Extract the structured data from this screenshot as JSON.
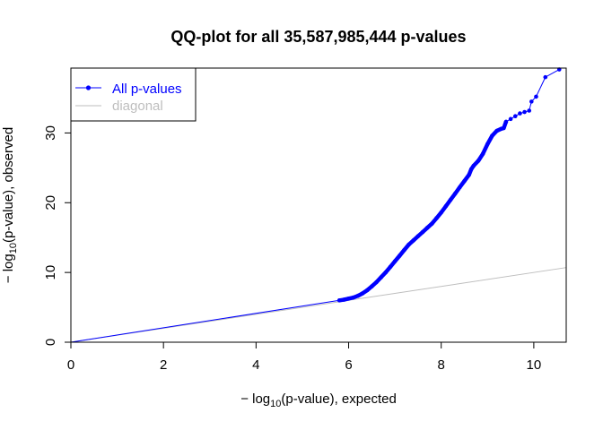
{
  "chart_data": {
    "type": "scatter",
    "title": "QQ-plot for all 35,587,985,444 p-values",
    "xlabel": {
      "prefix": "− log",
      "sub": "10",
      "suffix": "(p-value), expected"
    },
    "ylabel": {
      "prefix": "− log",
      "sub": "10",
      "suffix": "(p-value), observed"
    },
    "xlim": [
      0,
      10.7
    ],
    "ylim": [
      0,
      39.3
    ],
    "xticks": [
      "0",
      "2",
      "4",
      "6",
      "8",
      "10"
    ],
    "yticks": [
      "0",
      "10",
      "20",
      "30"
    ],
    "legend": {
      "position": "top-left",
      "entries": [
        {
          "label": "All p-values",
          "color": "#0000ff"
        },
        {
          "label": "diagonal",
          "color": "#bebebe"
        }
      ]
    },
    "series": [
      {
        "name": "All p-values",
        "color": "#0000ff",
        "points": [
          [
            0.0,
            0.0
          ],
          [
            5.8,
            6.0
          ],
          [
            5.9,
            6.1
          ],
          [
            6.0,
            6.25
          ],
          [
            6.1,
            6.4
          ],
          [
            6.2,
            6.65
          ],
          [
            6.3,
            7.0
          ],
          [
            6.4,
            7.45
          ],
          [
            6.5,
            8.0
          ],
          [
            6.6,
            8.6
          ],
          [
            6.7,
            9.3
          ],
          [
            6.8,
            10.0
          ],
          [
            6.9,
            10.8
          ],
          [
            7.0,
            11.6
          ],
          [
            7.1,
            12.4
          ],
          [
            7.2,
            13.2
          ],
          [
            7.3,
            14.0
          ],
          [
            7.4,
            14.6
          ],
          [
            7.5,
            15.2
          ],
          [
            7.6,
            15.8
          ],
          [
            7.7,
            16.4
          ],
          [
            7.8,
            17.0
          ],
          [
            7.9,
            17.8
          ],
          [
            8.0,
            18.6
          ],
          [
            8.1,
            19.5
          ],
          [
            8.2,
            20.4
          ],
          [
            8.3,
            21.3
          ],
          [
            8.4,
            22.2
          ],
          [
            8.5,
            23.1
          ],
          [
            8.6,
            24.0
          ],
          [
            8.65,
            24.8
          ],
          [
            8.7,
            25.3
          ],
          [
            8.8,
            26.0
          ],
          [
            8.9,
            27.0
          ],
          [
            9.0,
            28.4
          ],
          [
            9.1,
            29.6
          ],
          [
            9.2,
            30.3
          ],
          [
            9.3,
            30.6
          ],
          [
            9.35,
            30.7
          ],
          [
            9.4,
            31.6
          ],
          [
            9.5,
            32.0
          ],
          [
            9.6,
            32.4
          ],
          [
            9.7,
            32.8
          ],
          [
            9.8,
            33.0
          ],
          [
            9.9,
            33.2
          ],
          [
            9.95,
            34.5
          ],
          [
            10.05,
            35.2
          ],
          [
            10.25,
            38.0
          ],
          [
            10.55,
            39.1
          ]
        ]
      },
      {
        "name": "diagonal",
        "color": "#bebebe",
        "points": [
          [
            0.0,
            0.0
          ],
          [
            10.7,
            10.7
          ]
        ]
      }
    ]
  }
}
